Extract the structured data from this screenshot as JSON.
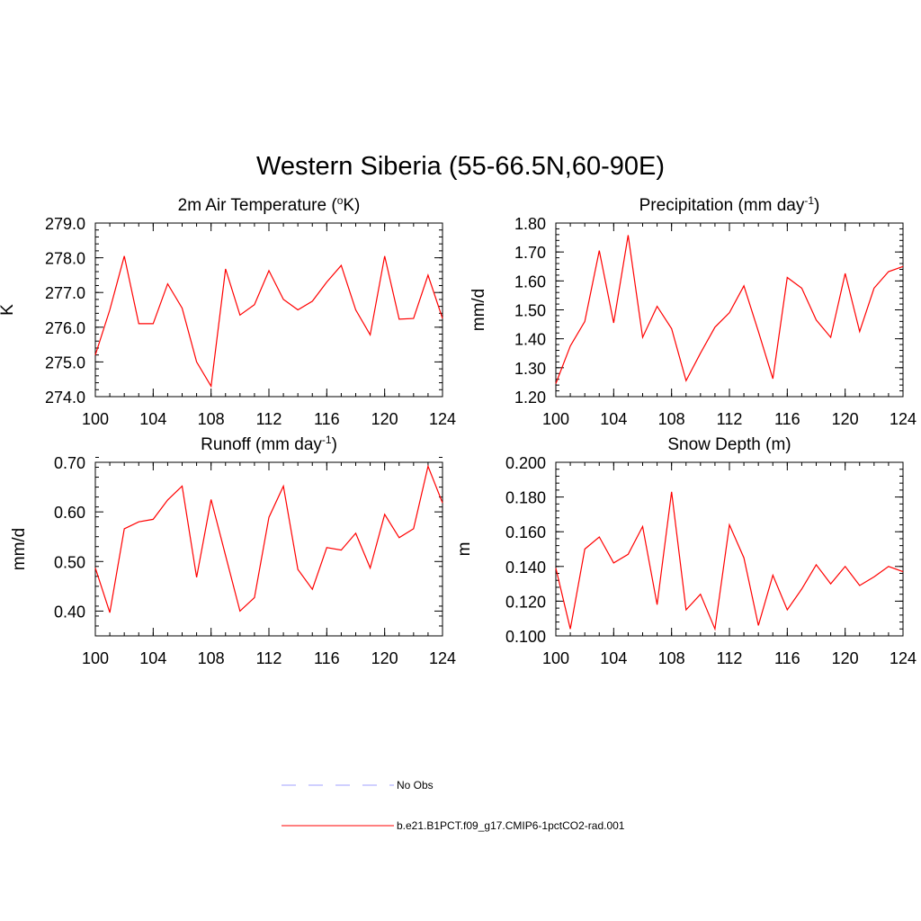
{
  "page_title": "Western Siberia (55-66.5N,60-90E)",
  "chart_data": [
    {
      "type": "line",
      "title": "2m Air Temperature (",
      "title_sup": "o",
      "title_after": "K)",
      "xlabel": "",
      "ylabel": "K",
      "xlim": [
        100,
        124
      ],
      "ylim": [
        274.0,
        279.0
      ],
      "x_ticks": [
        100,
        104,
        108,
        112,
        116,
        120,
        124
      ],
      "y_ticks": [
        "274.0",
        "275.0",
        "276.0",
        "277.0",
        "278.0",
        "279.0"
      ],
      "y_minor_step": 0.2,
      "x": [
        100,
        101,
        102,
        103,
        104,
        105,
        106,
        107,
        108,
        109,
        110,
        111,
        112,
        113,
        114,
        115,
        116,
        117,
        118,
        119,
        120,
        121,
        122,
        123,
        124
      ],
      "series": [
        {
          "name": "b.e21.B1PCT.f09_g17.CMIP6-1pctCO2-rad.001",
          "color": "#ff0000",
          "values": [
            275.2,
            276.5,
            278.05,
            276.1,
            276.1,
            277.25,
            276.55,
            275.0,
            274.3,
            277.68,
            276.35,
            276.65,
            277.63,
            276.8,
            276.5,
            276.75,
            277.3,
            277.78,
            276.5,
            275.78,
            278.05,
            276.23,
            276.25,
            277.5,
            276.25
          ]
        }
      ]
    },
    {
      "type": "line",
      "title": "Precipitation (mm day",
      "title_sup": "-1",
      "title_after": ")",
      "xlabel": "",
      "ylabel": "mm/d",
      "xlim": [
        100,
        124
      ],
      "ylim": [
        1.2,
        1.8
      ],
      "x_ticks": [
        100,
        104,
        108,
        112,
        116,
        120,
        124
      ],
      "y_ticks": [
        "1.20",
        "1.30",
        "1.40",
        "1.50",
        "1.60",
        "1.70",
        "1.80"
      ],
      "y_minor_step": 0.02,
      "x": [
        100,
        101,
        102,
        103,
        104,
        105,
        106,
        107,
        108,
        109,
        110,
        111,
        112,
        113,
        114,
        115,
        116,
        117,
        118,
        119,
        120,
        121,
        122,
        123,
        124
      ],
      "series": [
        {
          "name": "b.e21.B1PCT.f09_g17.CMIP6-1pctCO2-rad.001",
          "color": "#ff0000",
          "values": [
            1.245,
            1.375,
            1.46,
            1.705,
            1.455,
            1.758,
            1.405,
            1.512,
            1.435,
            1.255,
            1.35,
            1.44,
            1.49,
            1.583,
            1.425,
            1.262,
            1.612,
            1.575,
            1.465,
            1.405,
            1.626,
            1.425,
            1.575,
            1.632,
            1.65
          ]
        }
      ]
    },
    {
      "type": "line",
      "title": "Runoff (mm day",
      "title_sup": "-1",
      "title_after": ")",
      "xlabel": "",
      "ylabel": "mm/d",
      "xlim": [
        100,
        124
      ],
      "ylim": [
        0.35,
        0.7
      ],
      "x_ticks": [
        100,
        104,
        108,
        112,
        116,
        120,
        124
      ],
      "y_ticks": [
        "0.40",
        "0.50",
        "0.60",
        "0.70"
      ],
      "y_minor_step": 0.02,
      "x": [
        100,
        101,
        102,
        103,
        104,
        105,
        106,
        107,
        108,
        109,
        110,
        111,
        112,
        113,
        114,
        115,
        116,
        117,
        118,
        119,
        120,
        121,
        122,
        123,
        124
      ],
      "series": [
        {
          "name": "b.e21.B1PCT.f09_g17.CMIP6-1pctCO2-rad.001",
          "color": "#ff0000",
          "values": [
            0.487,
            0.397,
            0.566,
            0.58,
            0.585,
            0.624,
            0.652,
            0.468,
            0.625,
            0.512,
            0.4,
            0.427,
            0.589,
            0.652,
            0.484,
            0.444,
            0.528,
            0.523,
            0.557,
            0.487,
            0.595,
            0.548,
            0.566,
            0.692,
            0.618
          ]
        }
      ]
    },
    {
      "type": "line",
      "title": "Snow Depth (m)",
      "title_sup": "",
      "title_after": "",
      "xlabel": "",
      "ylabel": "m",
      "xlim": [
        100,
        124
      ],
      "ylim": [
        0.1,
        0.2
      ],
      "x_ticks": [
        100,
        104,
        108,
        112,
        116,
        120,
        124
      ],
      "y_ticks": [
        "0.100",
        "0.120",
        "0.140",
        "0.160",
        "0.180",
        "0.200"
      ],
      "y_minor_step": 0.004,
      "x": [
        100,
        101,
        102,
        103,
        104,
        105,
        106,
        107,
        108,
        109,
        110,
        111,
        112,
        113,
        114,
        115,
        116,
        117,
        118,
        119,
        120,
        121,
        122,
        123,
        124
      ],
      "series": [
        {
          "name": "b.e21.B1PCT.f09_g17.CMIP6-1pctCO2-rad.001",
          "color": "#ff0000",
          "values": [
            0.139,
            0.104,
            0.15,
            0.157,
            0.142,
            0.147,
            0.163,
            0.118,
            0.183,
            0.115,
            0.124,
            0.104,
            0.164,
            0.145,
            0.106,
            0.135,
            0.115,
            0.127,
            0.141,
            0.13,
            0.14,
            0.129,
            0.134,
            0.14,
            0.137
          ]
        }
      ]
    }
  ],
  "legend": {
    "items": [
      {
        "label": "No Obs",
        "color": "#a0a0ff",
        "style": "dashed"
      },
      {
        "label": "b.e21.B1PCT.f09_g17.CMIP6-1pctCO2-rad.001",
        "color": "#ff0000",
        "style": "solid"
      }
    ]
  }
}
